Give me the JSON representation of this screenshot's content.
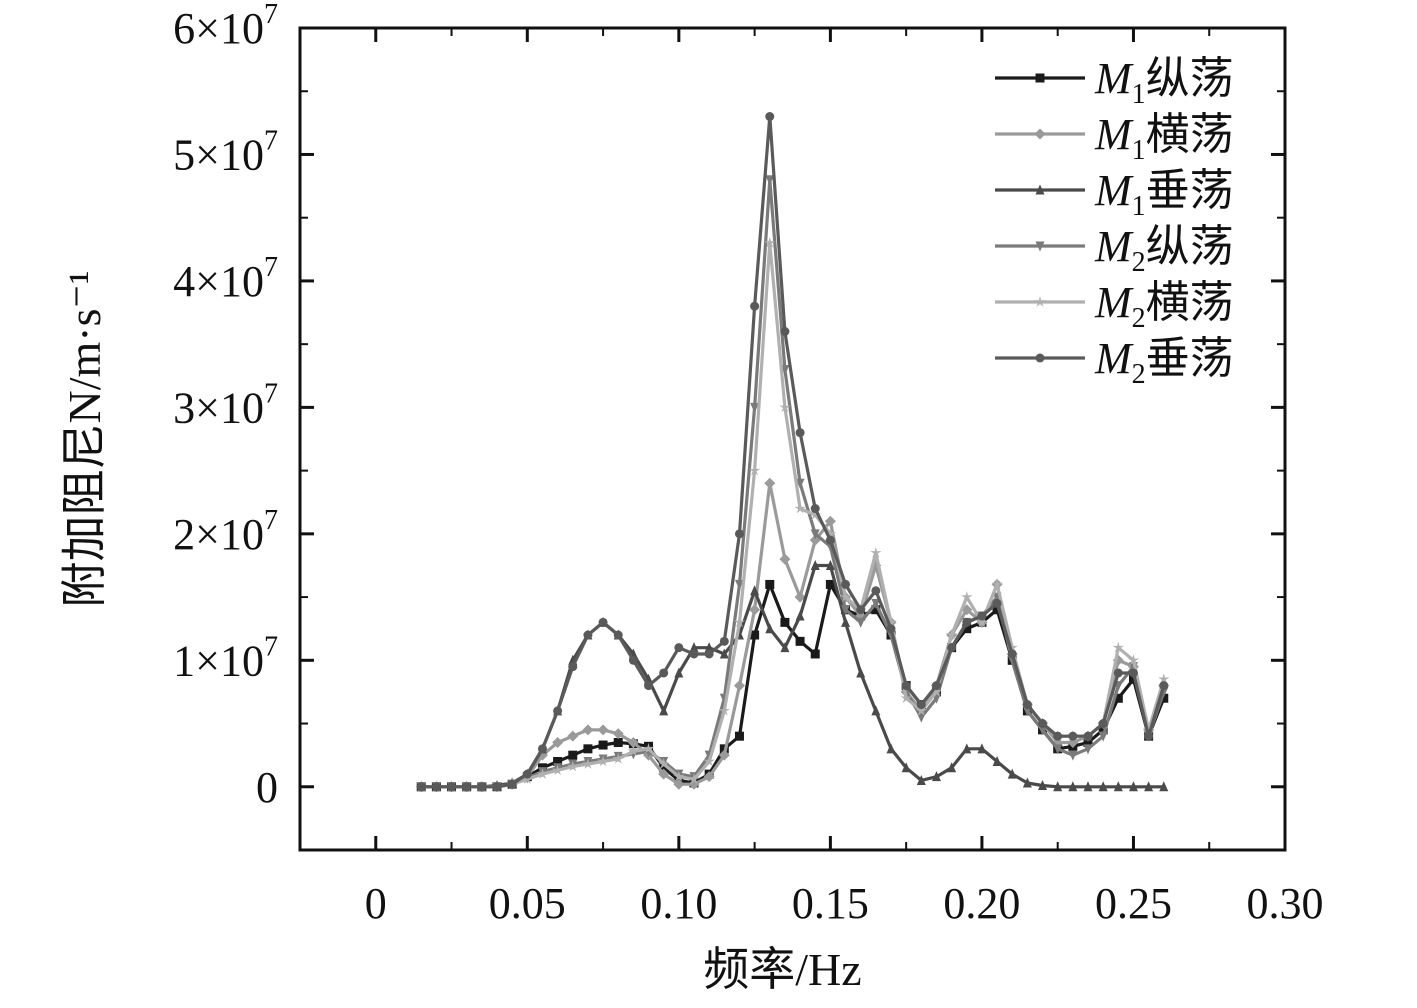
{
  "chart_data": {
    "type": "line",
    "xlabel": "频率/Hz",
    "ylabel": "附加阻尼N/m·s⁻¹",
    "xlim": [
      -0.025,
      0.3
    ],
    "ylim": [
      -5000000,
      60000000
    ],
    "x_ticks": [
      0,
      0.05,
      0.1,
      0.15,
      0.2,
      0.25,
      0.3
    ],
    "x_tick_labels": [
      "0",
      "0.05",
      "0.10",
      "0.15",
      "0.20",
      "0.25",
      "0.30"
    ],
    "y_ticks": [
      0,
      10000000,
      20000000,
      30000000,
      40000000,
      50000000,
      60000000
    ],
    "y_tick_labels": [
      {
        "mant": "0",
        "exp": ""
      },
      {
        "mant": "1×10",
        "exp": "7"
      },
      {
        "mant": "2×10",
        "exp": "7"
      },
      {
        "mant": "3×10",
        "exp": "7"
      },
      {
        "mant": "4×10",
        "exp": "7"
      },
      {
        "mant": "5×10",
        "exp": "7"
      },
      {
        "mant": "6×10",
        "exp": "7"
      }
    ],
    "legend_position": "top-right",
    "grid": false,
    "series": [
      {
        "name": "M1纵荡",
        "label_main": "M",
        "label_sub": "1",
        "label_rest": "纵荡",
        "marker": "square",
        "color": "#1a1a1a",
        "x": [
          0.015,
          0.02,
          0.025,
          0.03,
          0.035,
          0.04,
          0.045,
          0.05,
          0.055,
          0.06,
          0.065,
          0.07,
          0.075,
          0.08,
          0.085,
          0.09,
          0.095,
          0.1,
          0.105,
          0.11,
          0.115,
          0.12,
          0.125,
          0.13,
          0.135,
          0.14,
          0.145,
          0.15,
          0.155,
          0.16,
          0.165,
          0.17,
          0.175,
          0.18,
          0.185,
          0.19,
          0.195,
          0.2,
          0.205,
          0.21,
          0.215,
          0.22,
          0.225,
          0.23,
          0.235,
          0.24,
          0.245,
          0.25,
          0.255,
          0.26
        ],
        "y": [
          0,
          0,
          0,
          0,
          0,
          0,
          200000,
          800000,
          1500000,
          2000000,
          2500000,
          3000000,
          3300000,
          3500000,
          3400000,
          3200000,
          1500000,
          500000,
          300000,
          1000000,
          3000000,
          4000000,
          12000000,
          16000000,
          13000000,
          11500000,
          10500000,
          16000000,
          14000000,
          13500000,
          14000000,
          12000000,
          8000000,
          6500000,
          7500000,
          11000000,
          12500000,
          13000000,
          14000000,
          10000000,
          6000000,
          4500000,
          3000000,
          3200000,
          3500000,
          4500000,
          7000000,
          8500000,
          4000000,
          7000000
        ]
      },
      {
        "name": "M1横荡",
        "label_main": "M",
        "label_sub": "1",
        "label_rest": "横荡",
        "marker": "diamond",
        "color": "#9a9a9a",
        "x": [
          0.015,
          0.02,
          0.025,
          0.03,
          0.035,
          0.04,
          0.045,
          0.05,
          0.055,
          0.06,
          0.065,
          0.07,
          0.075,
          0.08,
          0.085,
          0.09,
          0.095,
          0.1,
          0.105,
          0.11,
          0.115,
          0.12,
          0.125,
          0.13,
          0.135,
          0.14,
          0.145,
          0.15,
          0.155,
          0.16,
          0.165,
          0.17,
          0.175,
          0.18,
          0.185,
          0.19,
          0.195,
          0.2,
          0.205,
          0.21,
          0.215,
          0.22,
          0.225,
          0.23,
          0.235,
          0.24,
          0.245,
          0.25,
          0.255,
          0.26
        ],
        "y": [
          0,
          0,
          0,
          0,
          0,
          0,
          200000,
          800000,
          2500000,
          3500000,
          4000000,
          4500000,
          4500000,
          4200000,
          3500000,
          2500000,
          1000000,
          200000,
          200000,
          800000,
          2500000,
          8000000,
          14000000,
          24000000,
          18000000,
          15000000,
          19500000,
          21000000,
          15000000,
          13500000,
          17500000,
          13000000,
          7500000,
          6000000,
          8000000,
          12000000,
          14000000,
          13000000,
          16000000,
          10500000,
          6500000,
          5000000,
          3500000,
          3500000,
          4000000,
          5000000,
          10000000,
          9500000,
          4500000,
          8000000
        ]
      },
      {
        "name": "M1垂荡",
        "label_main": "M",
        "label_sub": "1",
        "label_rest": "垂荡",
        "marker": "triangle-up",
        "color": "#4a4a4a",
        "x": [
          0.015,
          0.02,
          0.025,
          0.03,
          0.035,
          0.04,
          0.045,
          0.05,
          0.055,
          0.06,
          0.065,
          0.07,
          0.075,
          0.08,
          0.085,
          0.09,
          0.095,
          0.1,
          0.105,
          0.11,
          0.115,
          0.12,
          0.125,
          0.13,
          0.135,
          0.14,
          0.145,
          0.15,
          0.155,
          0.16,
          0.165,
          0.17,
          0.175,
          0.18,
          0.185,
          0.19,
          0.195,
          0.2,
          0.205,
          0.21,
          0.215,
          0.22,
          0.225,
          0.23,
          0.235,
          0.24,
          0.245,
          0.25,
          0.255,
          0.26
        ],
        "y": [
          0,
          0,
          0,
          0,
          0,
          100000,
          300000,
          1000000,
          3000000,
          6000000,
          10000000,
          12000000,
          13000000,
          12000000,
          10500000,
          8500000,
          6000000,
          9000000,
          11000000,
          11000000,
          10500000,
          12000000,
          15500000,
          12500000,
          11000000,
          13500000,
          17500000,
          17500000,
          13000000,
          9000000,
          6000000,
          3000000,
          1500000,
          500000,
          800000,
          1500000,
          3000000,
          3000000,
          2000000,
          1000000,
          300000,
          100000,
          0,
          0,
          0,
          0,
          0,
          0,
          0,
          0
        ]
      },
      {
        "name": "M2纵荡",
        "label_main": "M",
        "label_sub": "2",
        "label_rest": "纵荡",
        "marker": "triangle-down",
        "color": "#7a7a7a",
        "x": [
          0.015,
          0.02,
          0.025,
          0.03,
          0.035,
          0.04,
          0.045,
          0.05,
          0.055,
          0.06,
          0.065,
          0.07,
          0.075,
          0.08,
          0.085,
          0.09,
          0.095,
          0.1,
          0.105,
          0.11,
          0.115,
          0.12,
          0.125,
          0.13,
          0.135,
          0.14,
          0.145,
          0.15,
          0.155,
          0.16,
          0.165,
          0.17,
          0.175,
          0.18,
          0.185,
          0.19,
          0.195,
          0.2,
          0.205,
          0.21,
          0.215,
          0.22,
          0.225,
          0.23,
          0.235,
          0.24,
          0.245,
          0.25,
          0.255,
          0.26
        ],
        "y": [
          0,
          0,
          0,
          0,
          0,
          0,
          200000,
          700000,
          1200000,
          1500000,
          1800000,
          2000000,
          2200000,
          2400000,
          2600000,
          2800000,
          2000000,
          1000000,
          800000,
          2500000,
          7000000,
          16000000,
          30000000,
          48000000,
          33000000,
          24000000,
          20000000,
          19000000,
          14000000,
          13000000,
          14500000,
          12000000,
          7500000,
          5500000,
          7000000,
          11000000,
          13000000,
          13500000,
          15000000,
          10000000,
          6000000,
          4500000,
          3000000,
          2500000,
          3000000,
          4000000,
          8000000,
          9500000,
          4000000,
          7500000
        ]
      },
      {
        "name": "M2横荡",
        "label_main": "M",
        "label_sub": "2",
        "label_rest": "横荡",
        "marker": "star",
        "color": "#b0b0b0",
        "x": [
          0.015,
          0.02,
          0.025,
          0.03,
          0.035,
          0.04,
          0.045,
          0.05,
          0.055,
          0.06,
          0.065,
          0.07,
          0.075,
          0.08,
          0.085,
          0.09,
          0.095,
          0.1,
          0.105,
          0.11,
          0.115,
          0.12,
          0.125,
          0.13,
          0.135,
          0.14,
          0.145,
          0.15,
          0.155,
          0.16,
          0.165,
          0.17,
          0.175,
          0.18,
          0.185,
          0.19,
          0.195,
          0.2,
          0.205,
          0.21,
          0.215,
          0.22,
          0.225,
          0.23,
          0.235,
          0.24,
          0.245,
          0.25,
          0.255,
          0.26
        ],
        "y": [
          0,
          0,
          0,
          0,
          0,
          0,
          200000,
          600000,
          1000000,
          1300000,
          1600000,
          1800000,
          2000000,
          2200000,
          2800000,
          3000000,
          1800000,
          800000,
          600000,
          2000000,
          6000000,
          13000000,
          25000000,
          43000000,
          30000000,
          22000000,
          21500000,
          20000000,
          15000000,
          14000000,
          18500000,
          13000000,
          7000000,
          6000000,
          7500000,
          12000000,
          15000000,
          13000000,
          16000000,
          11000000,
          6500000,
          5000000,
          4000000,
          4000000,
          4000000,
          5000000,
          11000000,
          10000000,
          4500000,
          8500000
        ]
      },
      {
        "name": "M2垂荡",
        "label_main": "M",
        "label_sub": "2",
        "label_rest": "垂荡",
        "marker": "circle",
        "color": "#5a5a5a",
        "x": [
          0.015,
          0.02,
          0.025,
          0.03,
          0.035,
          0.04,
          0.045,
          0.05,
          0.055,
          0.06,
          0.065,
          0.07,
          0.075,
          0.08,
          0.085,
          0.09,
          0.095,
          0.1,
          0.105,
          0.11,
          0.115,
          0.12,
          0.125,
          0.13,
          0.135,
          0.14,
          0.145,
          0.15,
          0.155,
          0.16,
          0.165,
          0.17,
          0.175,
          0.18,
          0.185,
          0.19,
          0.195,
          0.2,
          0.205,
          0.21,
          0.215,
          0.22,
          0.225,
          0.23,
          0.235,
          0.24,
          0.245,
          0.25,
          0.255,
          0.26
        ],
        "y": [
          0,
          0,
          0,
          0,
          0,
          0,
          200000,
          1000000,
          3000000,
          6000000,
          9500000,
          12000000,
          13000000,
          12000000,
          10000000,
          8000000,
          9000000,
          11000000,
          10500000,
          10500000,
          11500000,
          20000000,
          38000000,
          53000000,
          36000000,
          28000000,
          22000000,
          19500000,
          16000000,
          14000000,
          15500000,
          12500000,
          8000000,
          6500000,
          8000000,
          11000000,
          13000000,
          13500000,
          14500000,
          10500000,
          6500000,
          5000000,
          4000000,
          4000000,
          4000000,
          5000000,
          9000000,
          9000000,
          4000000,
          8000000
        ]
      }
    ]
  }
}
